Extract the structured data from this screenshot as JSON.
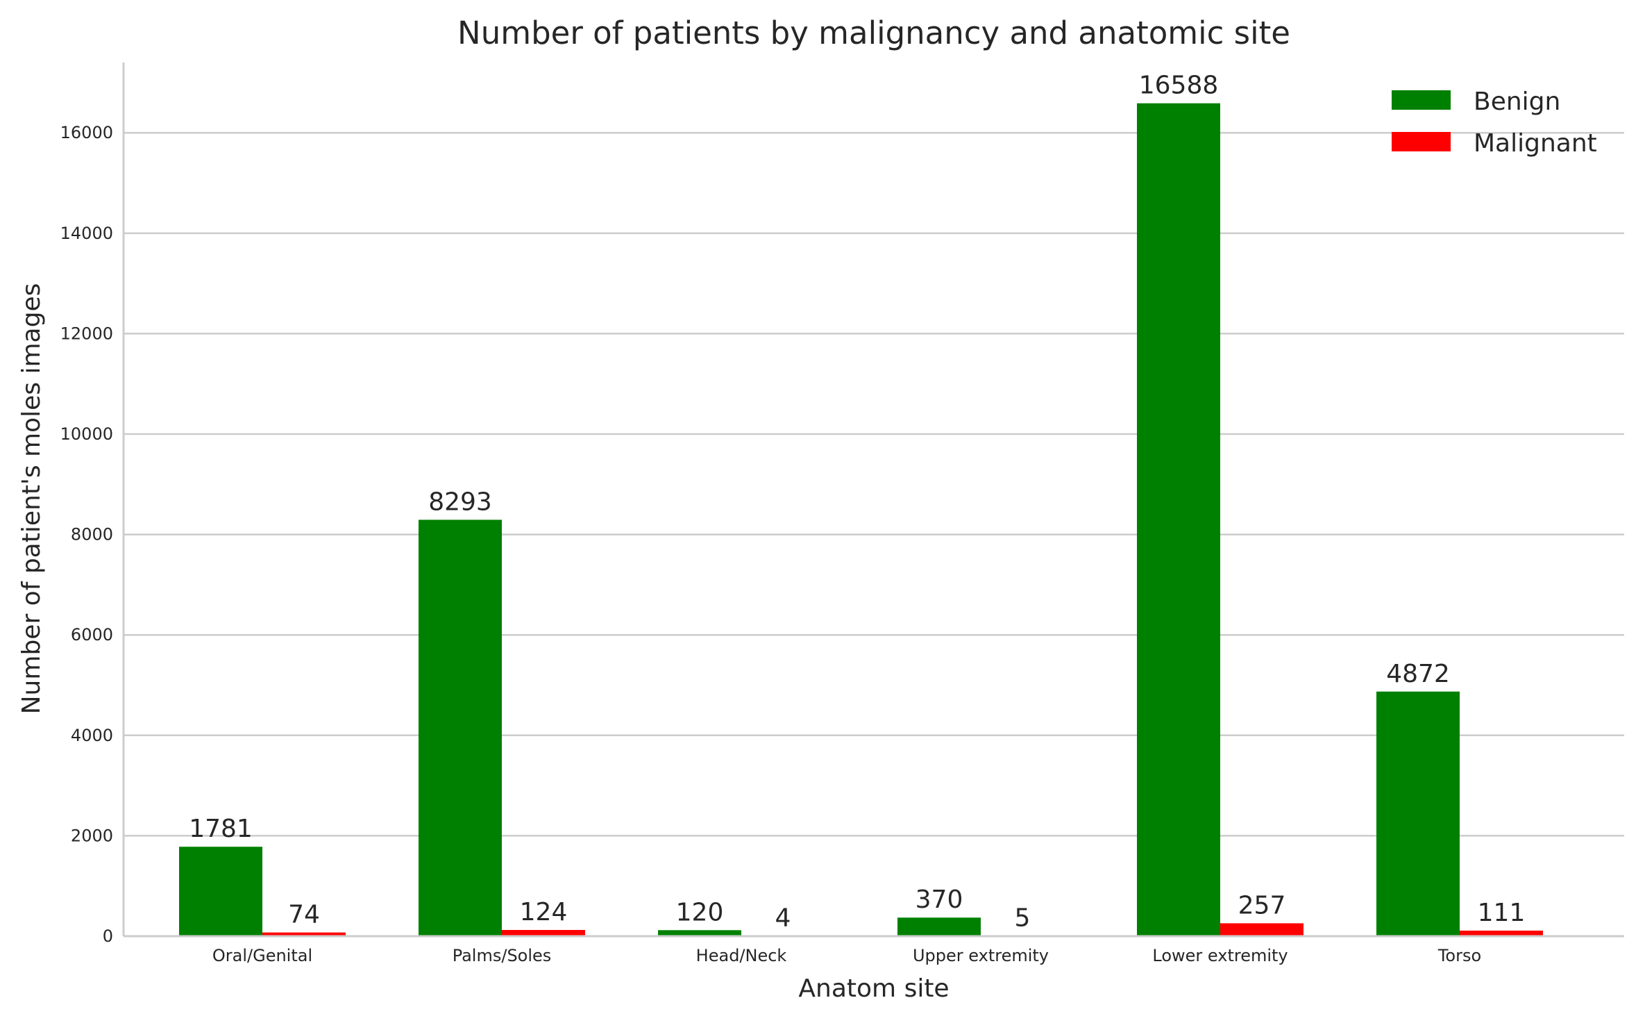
{
  "chart_data": {
    "type": "bar",
    "title": "Number of patients by malignancy and anatomic site",
    "xlabel": "Anatom site",
    "ylabel": "Number of patient's moles images",
    "categories": [
      "Oral/Genital",
      "Palms/Soles",
      "Head/Neck",
      "Upper extremity",
      "Lower extremity",
      "Torso"
    ],
    "series": [
      {
        "name": "Benign",
        "color": "#008000",
        "values": [
          1781,
          8293,
          120,
          370,
          16588,
          4872
        ]
      },
      {
        "name": "Malignant",
        "color": "#ff0000",
        "values": [
          74,
          124,
          4,
          5,
          257,
          111
        ]
      }
    ],
    "ylim": [
      0,
      17400
    ],
    "yticks": [
      0,
      2000,
      4000,
      6000,
      8000,
      10000,
      12000,
      14000,
      16000
    ],
    "ytick_labels": [
      "0",
      "2000",
      "4000",
      "6000",
      "8000",
      "10000",
      "12000",
      "14000",
      "16000"
    ],
    "grid": "horizontal",
    "legend_position": "top-right",
    "data_labels": true
  }
}
